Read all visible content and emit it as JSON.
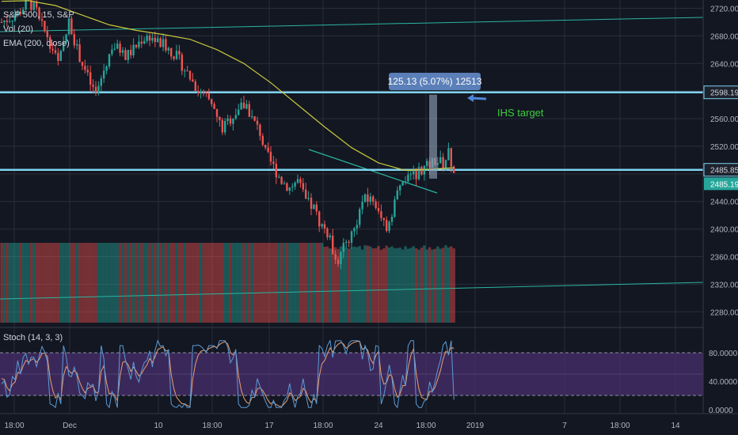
{
  "header": {
    "symbol_line": "S&P 500, 15, S&P",
    "vol_line": "Vol (20)",
    "ema_line": "EMA (200, close)"
  },
  "stoch_label": "Stoch (14, 3, 3)",
  "measure_label": "125.13 (5.07%) 12513",
  "annotation_text": "IHS target",
  "colors": {
    "background": "#131722",
    "grid": "#2a2e39",
    "up": "#26a69a",
    "down": "#ef5350",
    "ema": "#c8c83c",
    "level_line": "#7fd3f0",
    "trend_line": "#2bb5a0",
    "stoch_band": "#4a2f6e",
    "stoch_k": "#5b9bd5",
    "stoch_d": "#e8a070",
    "annotation": "#3ccf3c",
    "measure_box": "#5b7fb8",
    "price_tag": "#26a69a"
  },
  "chart_data": {
    "type": "candlestick",
    "price_axis": {
      "ticks": [
        2280,
        2320,
        2360,
        2400,
        2440,
        2480,
        2520,
        2560,
        2600,
        2640,
        2680,
        2720
      ],
      "tick_labels": [
        "2280.00",
        "2320.00",
        "2360.00",
        "2400.00",
        "2440.00",
        "2480.00",
        "2520.00",
        "2560.00",
        "2600.00",
        "2640.00",
        "2680.00",
        "2720.00"
      ],
      "range": [
        2262,
        2732
      ]
    },
    "time_axis": {
      "labels": [
        "18:00",
        "Dec",
        "10",
        "18:00",
        "17",
        "18:00",
        "24",
        "18:00",
        "2019",
        "7",
        "18:00",
        "14"
      ]
    },
    "horizontal_levels": [
      {
        "value": 2598.19,
        "label": "2598.19"
      },
      {
        "value": 2485.85,
        "label": "2485.85"
      }
    ],
    "last_price": {
      "value": 2485.19,
      "label": "2485.19"
    },
    "measure": {
      "from": 2473.06,
      "to": 2598.19,
      "change": 125.13,
      "percent": 5.07,
      "bars": 12513
    },
    "price_path": [
      [
        0,
        2700
      ],
      [
        6,
        2712
      ],
      [
        10,
        2730
      ],
      [
        13,
        2715
      ],
      [
        14,
        2700
      ],
      [
        17,
        2680
      ],
      [
        20,
        2650
      ],
      [
        21,
        2640
      ],
      [
        23,
        2665
      ],
      [
        25,
        2700
      ],
      [
        26,
        2690
      ],
      [
        28,
        2660
      ],
      [
        30,
        2640
      ],
      [
        33,
        2610
      ],
      [
        35,
        2595
      ],
      [
        38,
        2630
      ],
      [
        41,
        2665
      ],
      [
        44,
        2660
      ],
      [
        46,
        2650
      ],
      [
        49,
        2660
      ],
      [
        52,
        2675
      ],
      [
        55,
        2680
      ],
      [
        58,
        2670
      ],
      [
        61,
        2665
      ],
      [
        65,
        2650
      ],
      [
        70,
        2620
      ],
      [
        73,
        2600
      ],
      [
        76,
        2590
      ],
      [
        79,
        2570
      ],
      [
        82,
        2545
      ],
      [
        85,
        2560
      ],
      [
        88,
        2575
      ],
      [
        91,
        2580
      ],
      [
        93,
        2560
      ],
      [
        96,
        2540
      ],
      [
        98,
        2510
      ],
      [
        101,
        2490
      ],
      [
        104,
        2470
      ],
      [
        107,
        2460
      ],
      [
        110,
        2470
      ],
      [
        113,
        2440
      ],
      [
        116,
        2430
      ],
      [
        118,
        2410
      ],
      [
        121,
        2395
      ],
      [
        123,
        2370
      ],
      [
        125,
        2355
      ],
      [
        128,
        2380
      ],
      [
        131,
        2400
      ],
      [
        134,
        2440
      ],
      [
        137,
        2445
      ],
      [
        140,
        2430
      ],
      [
        143,
        2400
      ],
      [
        146,
        2440
      ],
      [
        149,
        2470
      ],
      [
        152,
        2473
      ],
      [
        155,
        2485
      ],
      [
        158,
        2490
      ],
      [
        161,
        2500
      ],
      [
        164,
        2495
      ],
      [
        166,
        2510
      ],
      [
        168,
        2485
      ]
    ],
    "ema_path": [
      [
        0,
        2730
      ],
      [
        10,
        2731
      ],
      [
        20,
        2724
      ],
      [
        30,
        2710
      ],
      [
        40,
        2696
      ],
      [
        50,
        2688
      ],
      [
        60,
        2682
      ],
      [
        70,
        2675
      ],
      [
        80,
        2660
      ],
      [
        90,
        2640
      ],
      [
        100,
        2612
      ],
      [
        110,
        2580
      ],
      [
        120,
        2548
      ],
      [
        130,
        2518
      ],
      [
        140,
        2496
      ],
      [
        150,
        2485
      ],
      [
        160,
        2487
      ],
      [
        168,
        2489
      ]
    ],
    "volume": {
      "up_weight": 0.5
    },
    "stochastic": {
      "upper_band": 80,
      "lower_band": 20,
      "ticks": [
        0,
        40,
        80
      ],
      "tick_labels": [
        "0.0000",
        "40.0000",
        "80.0000"
      ],
      "last_value": 14
    }
  }
}
